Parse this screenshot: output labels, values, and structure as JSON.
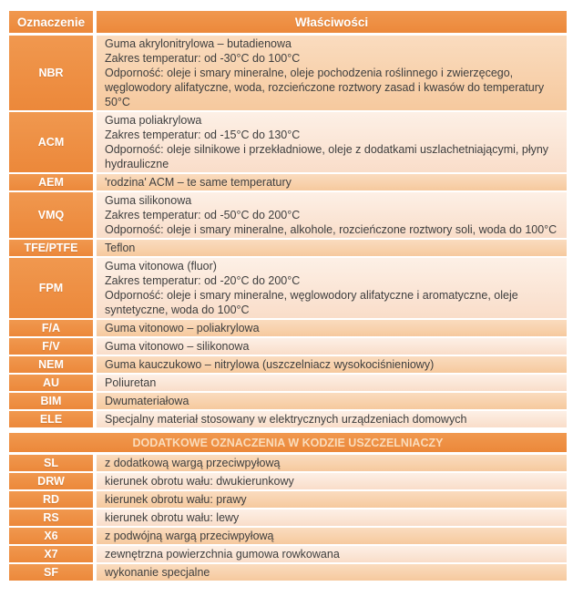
{
  "table": {
    "columns": {
      "designation": "Oznaczenie",
      "properties": "Właściwości"
    },
    "materials": [
      {
        "code": "NBR",
        "properties": "Guma akrylonitrylowa – butadienowa\nZakres temperatur: od -30°C do 100°C\nOdporność: oleje i smary mineralne, oleje pochodzenia roślinnego i zwierzęcego, węglowodory alifatyczne, woda, rozcieńczone roztwory zasad i kwasów do temperatury 50°C"
      },
      {
        "code": "ACM",
        "properties": "Guma poliakrylowa\nZakres temperatur: od -15°C do 130°C\nOdporność: oleje silnikowe i przekładniowe, oleje z dodatkami uszlachetniającymi, płyny hydrauliczne"
      },
      {
        "code": "AEM",
        "properties": "'rodzina' ACM – te same temperatury"
      },
      {
        "code": "VMQ",
        "properties": "Guma silikonowa\nZakres temperatur: od -50°C do 200°C\nOdporność: oleje i smary mineralne, alkohole, rozcieńczone roztwory soli, woda do 100°C"
      },
      {
        "code": "TFE/PTFE",
        "properties": "Teflon"
      },
      {
        "code": "FPM",
        "properties": "Guma vitonowa (fluor)\nZakres temperatur: od -20°C do 200°C\nOdporność: oleje i smary mineralne, węglowodory alifatyczne i aromatyczne, oleje syntetyczne, woda do 100°C"
      },
      {
        "code": "F/A",
        "properties": "Guma vitonowo – poliakrylowa"
      },
      {
        "code": "F/V",
        "properties": "Guma vitonowo – silikonowa"
      },
      {
        "code": "NEM",
        "properties": "Guma kauczukowo – nitrylowa  (uszczelniacz wysokociśnieniowy)"
      },
      {
        "code": "AU",
        "properties": "Poliuretan"
      },
      {
        "code": "BIM",
        "properties": "Dwumateriałowa"
      },
      {
        "code": "ELE",
        "properties": "Specjalny materiał stosowany w elektrycznych urządzeniach domowych"
      }
    ],
    "section2": {
      "title": "DODATKOWE OZNACZENIA W KODZIE USZCZELNIACZY",
      "rows": [
        {
          "code": "SL",
          "description": "z dodatkową wargą przeciwpyłową"
        },
        {
          "code": "DRW",
          "description": "kierunek obrotu wału: dwukierunkowy"
        },
        {
          "code": "RD",
          "description": "kierunek obrotu wału: prawy"
        },
        {
          "code": "RS",
          "description": "kierunek obrotu wału: lewy"
        },
        {
          "code": "X6",
          "description": "z podwójną wargą przeciwpyłową"
        },
        {
          "code": "X7",
          "description": "zewnętrzna powierzchnia gumowa rowkowana"
        },
        {
          "code": "SF",
          "description": "wykonanie specjalne"
        }
      ]
    },
    "colors": {
      "orange": "#ee8c40",
      "row_dark": "#f8cda6",
      "row_light": "#fbe5d6",
      "body_text": "#3e3e3e",
      "header_text": "#ffffff",
      "section_title_text": "#fadcbb"
    }
  }
}
